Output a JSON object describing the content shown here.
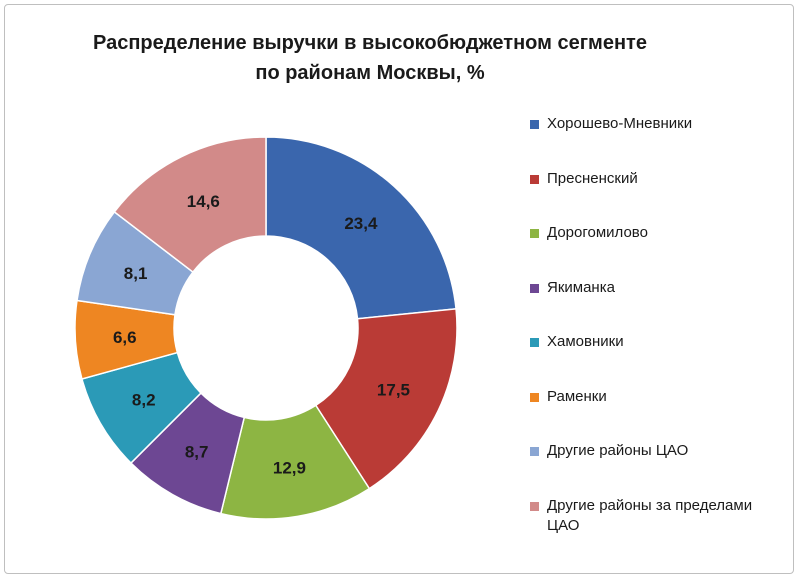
{
  "chart_data": {
    "type": "pie",
    "variant": "donut",
    "title_line1": "Распределение выручки в высокобюджетном сегменте",
    "title_line2": "по районам Москвы, %",
    "legend_position": "right",
    "slices": [
      {
        "label": "Хорошево-Мневники",
        "value": 23.4,
        "display": "23,4",
        "color": "#3a66ad"
      },
      {
        "label": "Пресненский",
        "value": 17.5,
        "display": "17,5",
        "color": "#ba3b36"
      },
      {
        "label": "Дорогомилово",
        "value": 12.9,
        "display": "12,9",
        "color": "#8db543"
      },
      {
        "label": "Якиманка",
        "value": 8.7,
        "display": "8,7",
        "color": "#6d4793"
      },
      {
        "label": "Хамовники",
        "value": 8.2,
        "display": "8,2",
        "color": "#2b9ab7"
      },
      {
        "label": "Раменки",
        "value": 6.6,
        "display": "6,6",
        "color": "#ee8622"
      },
      {
        "label": "Другие районы ЦАО",
        "value": 8.1,
        "display": "8,1",
        "color": "#8aa6d3"
      },
      {
        "label": "Другие районы за пределами ЦАО",
        "value": 14.6,
        "display": "14,6",
        "color": "#d28a89"
      }
    ]
  }
}
